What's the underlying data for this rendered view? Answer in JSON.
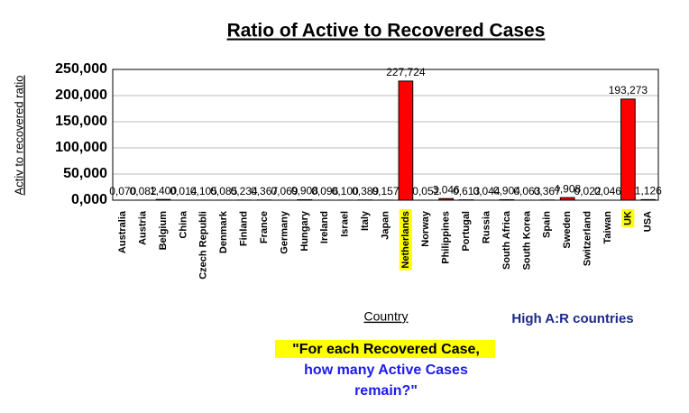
{
  "chart_data": {
    "type": "bar",
    "title": "Ratio of Active to Recovered Cases",
    "y_label": "Activ to recovered ratio",
    "x_label": "Country",
    "annotations": [
      "High A:R countries",
      "\"For each Recovered Case,",
      "how many Active Cases",
      "remain?\""
    ],
    "categories": [
      "Australia",
      "Austria",
      "Belgium",
      "China",
      "Czech Republi",
      "Denmark",
      "Finland",
      "France",
      "Germany",
      "Hungary",
      "Ireland",
      "Israel",
      "Italy",
      "Japan",
      "Netherlands",
      "Norway",
      "Philippines",
      "Portugal",
      "Russia",
      "South Africa",
      "South Korea",
      "Spain",
      "Sweden",
      "Switzerland",
      "Taiwan",
      "UK",
      "USA"
    ],
    "values": [
      0.07,
      0.082,
      1.4,
      0.014,
      0.105,
      0.085,
      0.234,
      0.367,
      0.069,
      0.908,
      0.096,
      0.1,
      0.389,
      0.157,
      227.724,
      0.052,
      3.046,
      0.613,
      0.044,
      0.904,
      0.063,
      0.367,
      4.908,
      0.022,
      0.046,
      193.273,
      1.126
    ],
    "value_labels": [
      "0,070",
      "0,082",
      "1,400",
      "0,014",
      "0,105",
      "0,085",
      "0,234",
      "0,367",
      "0,069",
      "0,908",
      "0,096",
      "0,100",
      "0,389",
      "0,157",
      "227,724",
      "0,052",
      "3,046",
      "0,613",
      "0,044",
      "0,904",
      "0,063",
      "0,367",
      "4,908",
      "0,022",
      "0,046",
      "193,273",
      "1,126"
    ],
    "color": "#ff0000",
    "highlighted": [
      14,
      25
    ],
    "ylim": [
      0,
      250
    ],
    "yticks": [
      {
        "value": 0,
        "label": "0,000"
      },
      {
        "value": 50,
        "label": "50,000"
      },
      {
        "value": 100,
        "label": "100,000"
      },
      {
        "value": 150,
        "label": "150,000"
      },
      {
        "value": 200,
        "label": "200,000"
      },
      {
        "value": 250,
        "label": "250,000"
      }
    ],
    "grid": true
  }
}
